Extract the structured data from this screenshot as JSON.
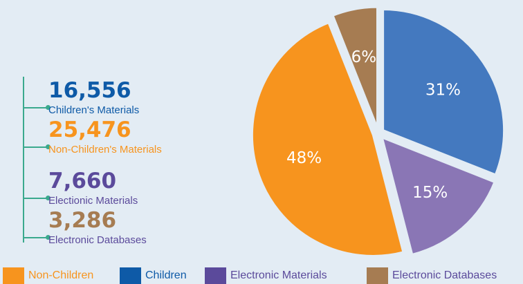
{
  "chart_data": {
    "type": "pie",
    "slices": [
      {
        "label": "Children",
        "value": 31,
        "display": "31%",
        "color": "#4479bf"
      },
      {
        "label": "Electronic Materials",
        "value": 15,
        "display": "15%",
        "color": "#8a76b5"
      },
      {
        "label": "Non-Children",
        "value": 48,
        "display": "48%",
        "color": "#f7941e"
      },
      {
        "label": "Electronic Databases",
        "value": 6,
        "display": "6%",
        "color": "#a67c52"
      }
    ]
  },
  "stats": [
    {
      "value": "16,556",
      "label": "Children's Materials",
      "color": "#0e5aa7"
    },
    {
      "value": "25,476",
      "label": "Non-Children's Materials",
      "color": "#f7941e"
    },
    {
      "value": "7,660",
      "label": "Electionic Materials",
      "color": "#5b4a9b"
    },
    {
      "value": "3,286",
      "label": "Electronic Databases",
      "color": "#a67c52"
    }
  ],
  "legend": [
    {
      "label": "Non-Children",
      "color": "#f7941e",
      "text_color": "#f7941e"
    },
    {
      "label": "Children",
      "color": "#0e5aa7",
      "text_color": "#0e5aa7"
    },
    {
      "label": "Electronic Materials",
      "color": "#5b4a9b",
      "text_color": "#5b4a9b"
    },
    {
      "label": "Electronic Databases",
      "color": "#a67c52",
      "text_color": "#5b4a9b"
    }
  ]
}
